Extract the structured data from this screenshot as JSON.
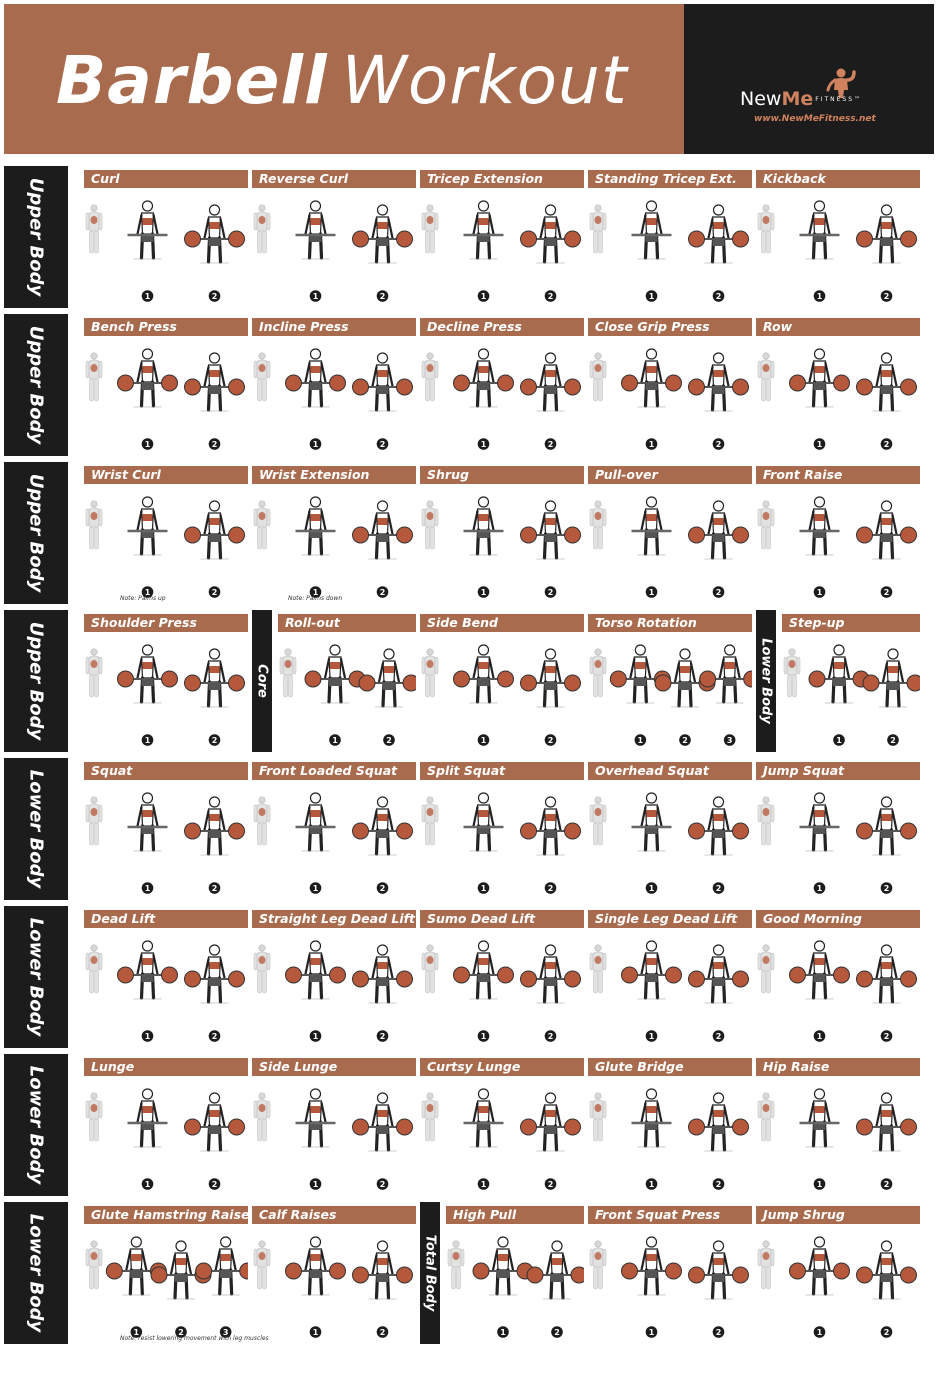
{
  "header": {
    "title_bold": "Barbell",
    "title_light": "Workout",
    "brand_name_a": "New",
    "brand_name_b": "Me",
    "brand_suffix": "FITNESS™",
    "website": "www.NewMeFitness.net"
  },
  "colors": {
    "accent": "#a96b4e",
    "dark": "#1c1c1c",
    "muscle": "#b5583b"
  },
  "rows": [
    {
      "label": "Upper Body",
      "cells": [
        {
          "name": "Curl",
          "steps": [
            "1",
            "2"
          ]
        },
        {
          "name": "Reverse Curl",
          "steps": [
            "1",
            "2"
          ]
        },
        {
          "name": "Tricep Extension",
          "steps": [
            "1",
            "2"
          ]
        },
        {
          "name": "Standing Tricep Ext.",
          "steps": [
            "1",
            "2"
          ]
        },
        {
          "name": "Kickback",
          "steps": [
            "1",
            "2"
          ]
        }
      ]
    },
    {
      "label": "Upper Body",
      "cells": [
        {
          "name": "Bench Press",
          "steps": [
            "1",
            "2"
          ]
        },
        {
          "name": "Incline Press",
          "steps": [
            "1",
            "2"
          ]
        },
        {
          "name": "Decline Press",
          "steps": [
            "1",
            "2"
          ]
        },
        {
          "name": "Close Grip Press",
          "steps": [
            "1",
            "2"
          ]
        },
        {
          "name": "Row",
          "steps": [
            "1",
            "2"
          ]
        }
      ]
    },
    {
      "label": "Upper Body",
      "cells": [
        {
          "name": "Wrist Curl",
          "steps": [
            "1",
            "2"
          ],
          "note": "Note: Palms up"
        },
        {
          "name": "Wrist Extension",
          "steps": [
            "1",
            "2"
          ],
          "note": "Note: Palms down"
        },
        {
          "name": "Shrug",
          "steps": [
            "1",
            "2"
          ]
        },
        {
          "name": "Pull-over",
          "steps": [
            "1",
            "2"
          ]
        },
        {
          "name": "Front Raise",
          "steps": [
            "1",
            "2"
          ]
        }
      ]
    },
    {
      "label": "Upper Body",
      "cells": [
        {
          "name": "Shoulder Press",
          "steps": [
            "1",
            "2"
          ]
        },
        {
          "name": "Roll-out",
          "steps": [
            "1",
            "2"
          ],
          "section": "Core"
        },
        {
          "name": "Side Bend",
          "steps": [
            "1",
            "2"
          ]
        },
        {
          "name": "Torso Rotation",
          "steps": [
            "1",
            "2",
            "3"
          ]
        },
        {
          "name": "Step-up",
          "steps": [
            "1",
            "2"
          ],
          "section": "Lower Body"
        }
      ]
    },
    {
      "label": "Lower Body",
      "cells": [
        {
          "name": "Squat",
          "steps": [
            "1",
            "2"
          ]
        },
        {
          "name": "Front Loaded Squat",
          "steps": [
            "1",
            "2"
          ]
        },
        {
          "name": "Split Squat",
          "steps": [
            "1",
            "2"
          ]
        },
        {
          "name": "Overhead Squat",
          "steps": [
            "1",
            "2"
          ]
        },
        {
          "name": "Jump Squat",
          "steps": [
            "1",
            "2"
          ]
        }
      ]
    },
    {
      "label": "Lower Body",
      "cells": [
        {
          "name": "Dead Lift",
          "steps": [
            "1",
            "2"
          ]
        },
        {
          "name": "Straight Leg Dead Lift",
          "steps": [
            "1",
            "2"
          ]
        },
        {
          "name": "Sumo Dead Lift",
          "steps": [
            "1",
            "2"
          ]
        },
        {
          "name": "Single Leg Dead Lift",
          "steps": [
            "1",
            "2"
          ]
        },
        {
          "name": "Good Morning",
          "steps": [
            "1",
            "2"
          ]
        }
      ]
    },
    {
      "label": "Lower Body",
      "cells": [
        {
          "name": "Lunge",
          "steps": [
            "1",
            "2"
          ]
        },
        {
          "name": "Side Lunge",
          "steps": [
            "1",
            "2"
          ]
        },
        {
          "name": "Curtsy Lunge",
          "steps": [
            "1",
            "2"
          ]
        },
        {
          "name": "Glute Bridge",
          "steps": [
            "1",
            "2"
          ]
        },
        {
          "name": "Hip Raise",
          "steps": [
            "1",
            "2"
          ]
        }
      ]
    },
    {
      "label": "Lower Body",
      "cells": [
        {
          "name": "Glute Hamstring Raise",
          "steps": [
            "1",
            "2",
            "3"
          ],
          "note": "Note: resist lowering movement with leg muscles"
        },
        {
          "name": "Calf Raises",
          "steps": [
            "1",
            "2"
          ]
        },
        {
          "name": "High Pull",
          "steps": [
            "1",
            "2"
          ],
          "section": "Total Body"
        },
        {
          "name": "Front Squat Press",
          "steps": [
            "1",
            "2"
          ]
        },
        {
          "name": "Jump Shrug",
          "steps": [
            "1",
            "2"
          ]
        }
      ]
    }
  ]
}
